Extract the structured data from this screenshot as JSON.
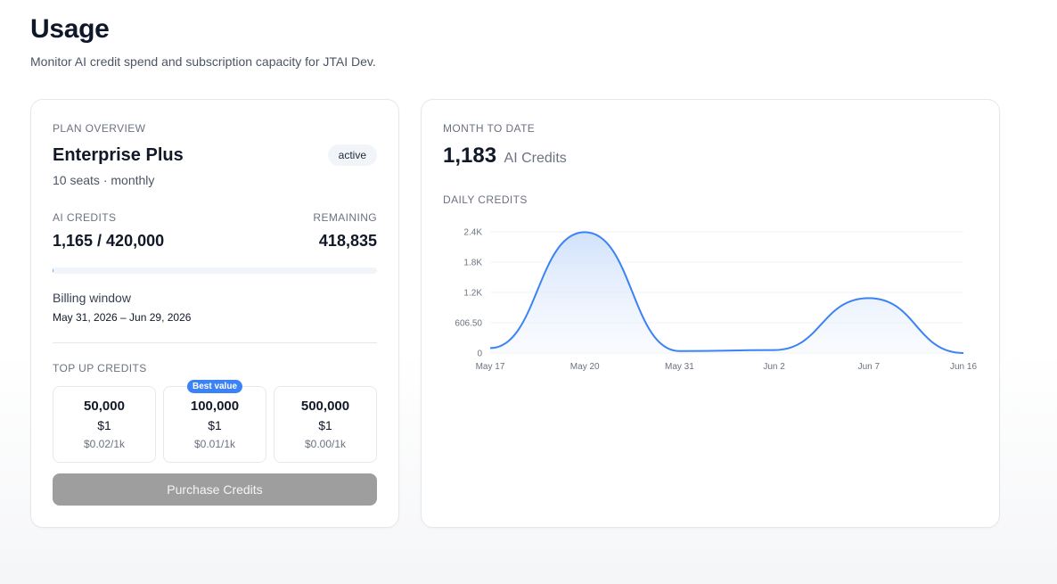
{
  "page": {
    "title": "Usage",
    "subtitle": "Monitor AI credit spend and subscription capacity for JTAI Dev."
  },
  "plan": {
    "eyebrow": "PLAN OVERVIEW",
    "name": "Enterprise Plus",
    "status": "active",
    "meta": "10 seats · monthly",
    "credits_label": "AI CREDITS",
    "credits_value": "1,165 / 420,000",
    "remaining_label": "REMAINING",
    "remaining_value": "418,835",
    "usage_fraction": 0.0028,
    "billing_label": "Billing window",
    "billing_range": "May 31, 2026 – Jun 29, 2026",
    "topup_label": "TOP UP CREDITS",
    "options": [
      {
        "amount": "50,000",
        "price": "$1",
        "rate": "$0.02/1k"
      },
      {
        "amount": "100,000",
        "price": "$1",
        "rate": "$0.01/1k",
        "badge": "Best value"
      },
      {
        "amount": "500,000",
        "price": "$1",
        "rate": "$0.00/1k"
      }
    ],
    "purchase_label": "Purchase Credits"
  },
  "mtd": {
    "eyebrow": "MONTH TO DATE",
    "value": "1,183",
    "unit": "AI Credits",
    "chart_label": "DAILY CREDITS"
  },
  "colors": {
    "line": "#3b82f6",
    "area_top": "#cfe0fb",
    "progress": "#60a5fa",
    "button_disabled": "#9e9e9e"
  },
  "chart_data": {
    "type": "area",
    "x": [
      "May 17",
      "May 20",
      "May 31",
      "Jun 2",
      "Jun 7",
      "Jun 16"
    ],
    "values": [
      100,
      2420,
      40,
      60,
      1100,
      0
    ],
    "y_ticks": [
      "0",
      "606.50",
      "1.2K",
      "1.8K",
      "2.4K"
    ],
    "ylim": [
      0,
      2426
    ],
    "grid": true,
    "title": "",
    "xlabel": "",
    "ylabel": ""
  }
}
